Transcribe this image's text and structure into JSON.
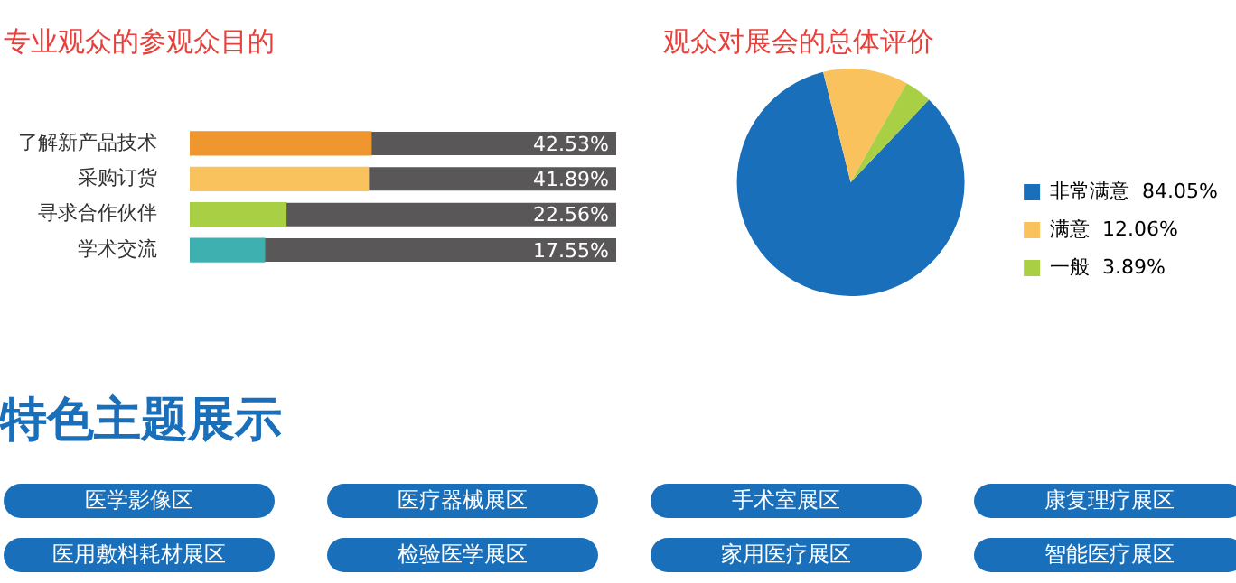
{
  "chart_data": [
    {
      "type": "bar",
      "orientation": "horizontal",
      "title": "专业观众的参观众目的",
      "categories": [
        "了解新产品技术",
        "采购订货",
        "寻求合作伙伴",
        "学术交流"
      ],
      "values": [
        42.53,
        41.89,
        22.56,
        17.55
      ],
      "colors": [
        "#f0962e",
        "#f9c25c",
        "#a9cf45",
        "#3fb0b0"
      ],
      "value_labels": [
        "42.53%",
        "41.89%",
        "22.56%",
        "17.55%"
      ],
      "xlim": [
        0,
        100
      ],
      "tick_labels": "y",
      "legend": false,
      "grid": false
    },
    {
      "type": "pie",
      "title": "观众对展会的总体评价",
      "categories": [
        "非常满意",
        "满意",
        "一般"
      ],
      "values": [
        84.05,
        12.06,
        3.89
      ],
      "colors": [
        "#1a6fba",
        "#f9c25c",
        "#a9cf45"
      ],
      "value_labels": [
        "84.05%",
        "12.06%",
        "3.89%"
      ],
      "legend": "right"
    },
    {
      "type": "other",
      "title": "特色主题展示",
      "annotations": [
        "医学影像区",
        "医疗器械展区",
        "手术室展区",
        "康复理疗展区",
        "医用敷料耗材展区",
        "检验医学展区",
        "家用医疗展区",
        "智能医疗展区"
      ]
    }
  ]
}
